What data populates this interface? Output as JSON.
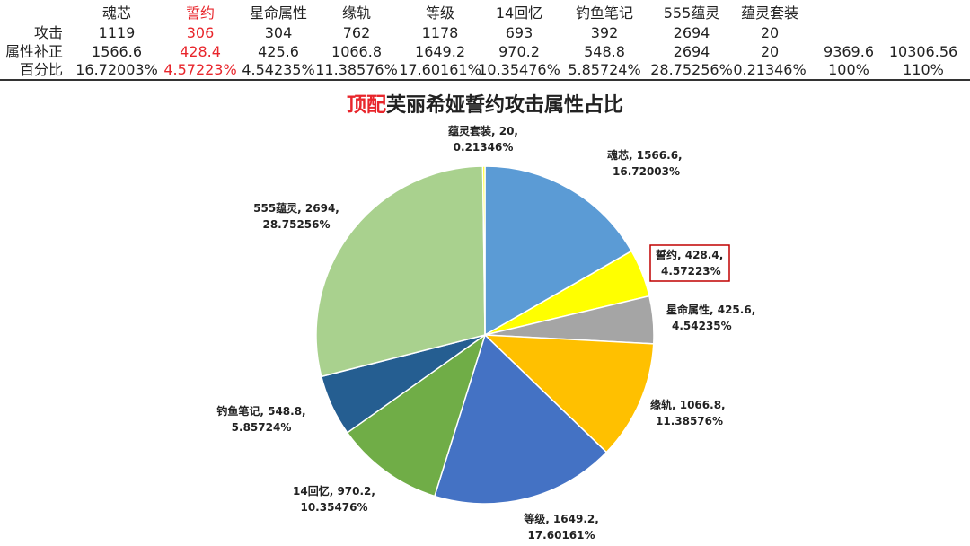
{
  "stats_table": {
    "headers": [
      "魂芯",
      "誓约",
      "星命属性",
      "缘轨",
      "等级",
      "14回忆",
      "钓鱼笔记",
      "555蕴灵",
      "蕴灵套装"
    ],
    "highlight_col": 1,
    "rows": [
      {
        "label": "攻击",
        "values": [
          "1119",
          "306",
          "304",
          "762",
          "1178",
          "693",
          "392",
          "2694",
          "20"
        ],
        "extra": [
          "",
          ""
        ]
      },
      {
        "label": "属性补正",
        "values": [
          "1566.6",
          "428.4",
          "425.6",
          "1066.8",
          "1649.2",
          "970.2",
          "548.8",
          "2694",
          "20"
        ],
        "extra": [
          "9369.6",
          "10306.56"
        ]
      },
      {
        "label": "百分比",
        "values": [
          "16.72003%",
          "4.57223%",
          "4.54235%",
          "11.38576%",
          "17.60161%",
          "10.35476%",
          "5.85724%",
          "28.75256%",
          "0.21346%"
        ],
        "extra": [
          "100%",
          "110%"
        ]
      }
    ]
  },
  "chart_data": {
    "type": "pie",
    "title_highlight": "顶配",
    "title_rest": "芙丽希娅誓约攻击属性占比",
    "slices": [
      {
        "name": "魂芯",
        "value": 1566.6,
        "percent": "16.72003%",
        "color": "#5b9bd5"
      },
      {
        "name": "誓约",
        "value": 428.4,
        "percent": "4.57223%",
        "color": "#ffff00",
        "boxed": true
      },
      {
        "name": "星命属性",
        "value": 425.6,
        "percent": "4.54235%",
        "color": "#a5a5a5"
      },
      {
        "name": "缘轨",
        "value": 1066.8,
        "percent": "11.38576%",
        "color": "#ffc000"
      },
      {
        "name": "等级",
        "value": 1649.2,
        "percent": "17.60161%",
        "color": "#4472c4"
      },
      {
        "name": "14回忆",
        "value": 970.2,
        "percent": "10.35476%",
        "color": "#70ad47"
      },
      {
        "name": "钓鱼笔记",
        "value": 548.8,
        "percent": "5.85724%",
        "color": "#255e91"
      },
      {
        "name": "555蕴灵",
        "value": 2694,
        "percent": "28.75256%",
        "color": "#a9d18e"
      },
      {
        "name": "蕴灵套装",
        "value": 20,
        "percent": "0.21346%",
        "color": "#ffff00"
      }
    ],
    "start_angle": "12 o'clock",
    "direction": "clockwise",
    "legend": "none",
    "label_format": "name, value, percent"
  }
}
